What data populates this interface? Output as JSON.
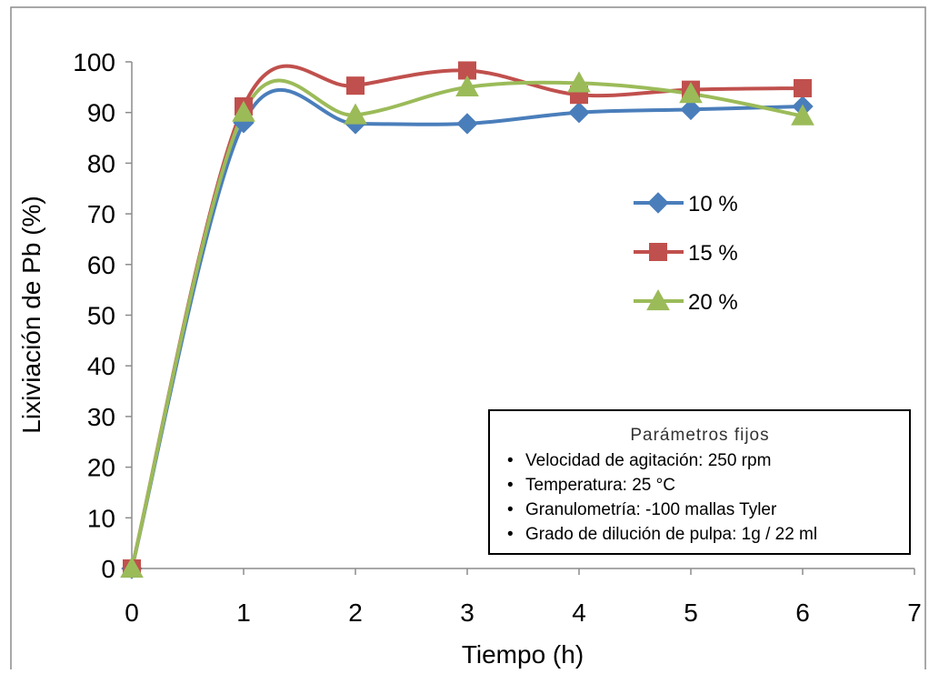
{
  "chart_data": {
    "type": "line",
    "xlabel": "Tiempo (h)",
    "ylabel": "Lixiviación de Pb (%)",
    "xlim": [
      0,
      7
    ],
    "ylim": [
      0,
      100
    ],
    "x_ticks": [
      "0",
      "1",
      "2",
      "3",
      "4",
      "5",
      "6",
      "7"
    ],
    "y_ticks": [
      "0",
      "10",
      "20",
      "30",
      "40",
      "50",
      "60",
      "70",
      "80",
      "90",
      "100"
    ],
    "x": [
      0,
      1,
      2,
      3,
      4,
      5,
      6
    ],
    "series": [
      {
        "name": "10 %",
        "marker": "diamond",
        "color": "#4a7ebb",
        "values": [
          0,
          88,
          87.8,
          87.8,
          90,
          90.6,
          91.2
        ]
      },
      {
        "name": "15 %",
        "marker": "square",
        "color": "#c0504d",
        "values": [
          0,
          91.2,
          95.3,
          98.3,
          93.5,
          94.5,
          94.8
        ]
      },
      {
        "name": "20 %",
        "marker": "triangle",
        "color": "#9bbb59",
        "values": [
          0,
          90,
          89.5,
          95,
          95.8,
          93.7,
          89.3
        ]
      }
    ],
    "grid": false,
    "legend_position": "right"
  },
  "parameters_box": {
    "title": "Parámetros fijos",
    "items": [
      "Velocidad de agitación: 250 rpm",
      "Temperatura: 25 °C",
      "Granulometría: -100 mallas Tyler",
      "Grado de dilución de pulpa: 1g / 22 ml"
    ],
    "bullet": "•"
  }
}
